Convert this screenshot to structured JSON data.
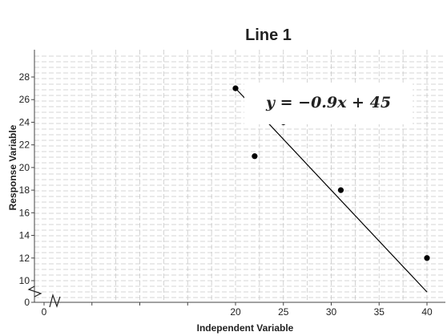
{
  "chart_data": {
    "type": "scatter",
    "title": "Line 1",
    "xlabel": "Independent Variable",
    "ylabel": "Response Variable",
    "xlim": [
      0,
      41
    ],
    "ylim": [
      0,
      30
    ],
    "x_ticks": [
      0,
      5,
      10,
      15,
      20,
      25,
      30,
      35,
      40
    ],
    "x_tick_labels": [
      "0",
      "",
      "",
      "",
      "20",
      "25",
      "30",
      "35",
      "40"
    ],
    "y_ticks": [
      0,
      10,
      12,
      14,
      16,
      18,
      20,
      22,
      24,
      26,
      28
    ],
    "axis_breaks": [
      "x",
      "y"
    ],
    "grid": true,
    "points": [
      {
        "x": 20,
        "y": 27
      },
      {
        "x": 22,
        "y": 21
      },
      {
        "x": 25,
        "y": 24
      },
      {
        "x": 31,
        "y": 18
      },
      {
        "x": 40,
        "y": 12
      }
    ],
    "trend_line": {
      "slope": -0.9,
      "intercept": 45,
      "x_range": [
        20,
        40
      ]
    },
    "annotation": "y = −0.9x + 45"
  }
}
